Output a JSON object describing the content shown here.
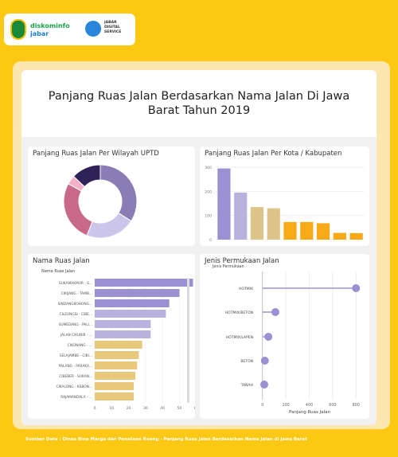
{
  "header": {
    "logo_left": [
      "diskominfo",
      "jabar"
    ],
    "logo_right": [
      "JABAR",
      "DIGITAL",
      "SERVICE"
    ]
  },
  "title_lines": [
    "Panjang Ruas Jalan Berdasarkan Nama Jalan Di Jawa",
    "Barat Tahun 2019"
  ],
  "footer": "Sumber Data : Dinas Bina Marga dan Penataan Ruang - Panjang Ruas Jalan Berdasarkan Nama Jalan di Jawa Barat",
  "panels": {
    "uptd": "Panjang Ruas Jalan Per Wilayah UPTD",
    "kota": "Panjang Ruas Jalan Per Kota / Kabupaten",
    "nama": "Nama Ruas Jalan",
    "jenis": "Jenis Permukaan Jalan"
  },
  "colors": {
    "purple_dark": "#8a7cb5",
    "purple": "#9b90d2",
    "purple_light": "#b9b1de",
    "tan": "#e8c87a",
    "orange": "#f7aa16",
    "pink": "#c9698a",
    "pink_light": "#f3b0c8",
    "navy": "#2f2256"
  },
  "chart_data": [
    {
      "type": "pie",
      "title": "Panjang Ruas Jalan Per Wilayah UPTD",
      "values": [
        34,
        22,
        27,
        4,
        13
      ],
      "colors": [
        "#8a7cb5",
        "#cbc5ea",
        "#c9698a",
        "#f3b0c8",
        "#2f2256"
      ]
    },
    {
      "type": "bar",
      "title": "Panjang Ruas Jalan Per Kota / Kabupaten",
      "values": [
        295,
        195,
        135,
        130,
        73,
        73,
        68,
        28,
        27
      ],
      "colors": [
        "#9b90d2",
        "#b9b1de",
        "#ddc58a",
        "#ddc58a",
        "#f7aa16",
        "#f7aa16",
        "#f7aa16",
        "#f7aa16",
        "#f7aa16"
      ],
      "ylim": [
        0,
        320
      ],
      "yticks": [
        "300",
        "200",
        "100",
        "0"
      ]
    },
    {
      "type": "bar",
      "orientation": "horizontal",
      "title": "Nama Ruas Jalan",
      "ylabel": "Nama Ruas Jalan",
      "categories": [
        "SUKAMAKMUR - S...",
        "CIKIJANG - TAMB...",
        "SINDANGBOHONG...",
        "CILEUNGSI - CIBE...",
        "SUMEDANG - PALI...",
        "JALAN CIKUNIR - ...",
        "CIKONANG - ...",
        "SELAJAMBE - CIBI...",
        "PALANG - PARAKA...",
        "CIBEBER - SUKAN...",
        "CIKALONG - KEBON...",
        "RAJAMANDALA - ..."
      ],
      "values": [
        58,
        50,
        44,
        42,
        33,
        33,
        28,
        26,
        25,
        24,
        23,
        23
      ],
      "colors": [
        "#9b90d2",
        "#9b90d2",
        "#9b90d2",
        "#b9b1de",
        "#b9b1de",
        "#b9b1de",
        "#e8c87a",
        "#e8c87a",
        "#e8c87a",
        "#e8c87a",
        "#e8c87a",
        "#e8c87a"
      ],
      "xlim": [
        0,
        62
      ],
      "xticks": [
        "0",
        "10",
        "20",
        "30",
        "40",
        "50",
        "60"
      ]
    },
    {
      "type": "scatter",
      "style": "lollipop",
      "title": "Jenis Permukaan Jalan",
      "ylabel": "Jenis Permukaan",
      "xlabel": "Panjang Ruas Jalan",
      "categories": [
        "HOTMIX",
        "HOTMIX/BETON",
        "HOTMIX/LAPEN",
        "BETON",
        "TANAH"
      ],
      "values": [
        800,
        110,
        50,
        20,
        15
      ],
      "xlim": [
        -60,
        860
      ],
      "xticks": [
        "0",
        "200",
        "400",
        "600",
        "800"
      ]
    }
  ]
}
